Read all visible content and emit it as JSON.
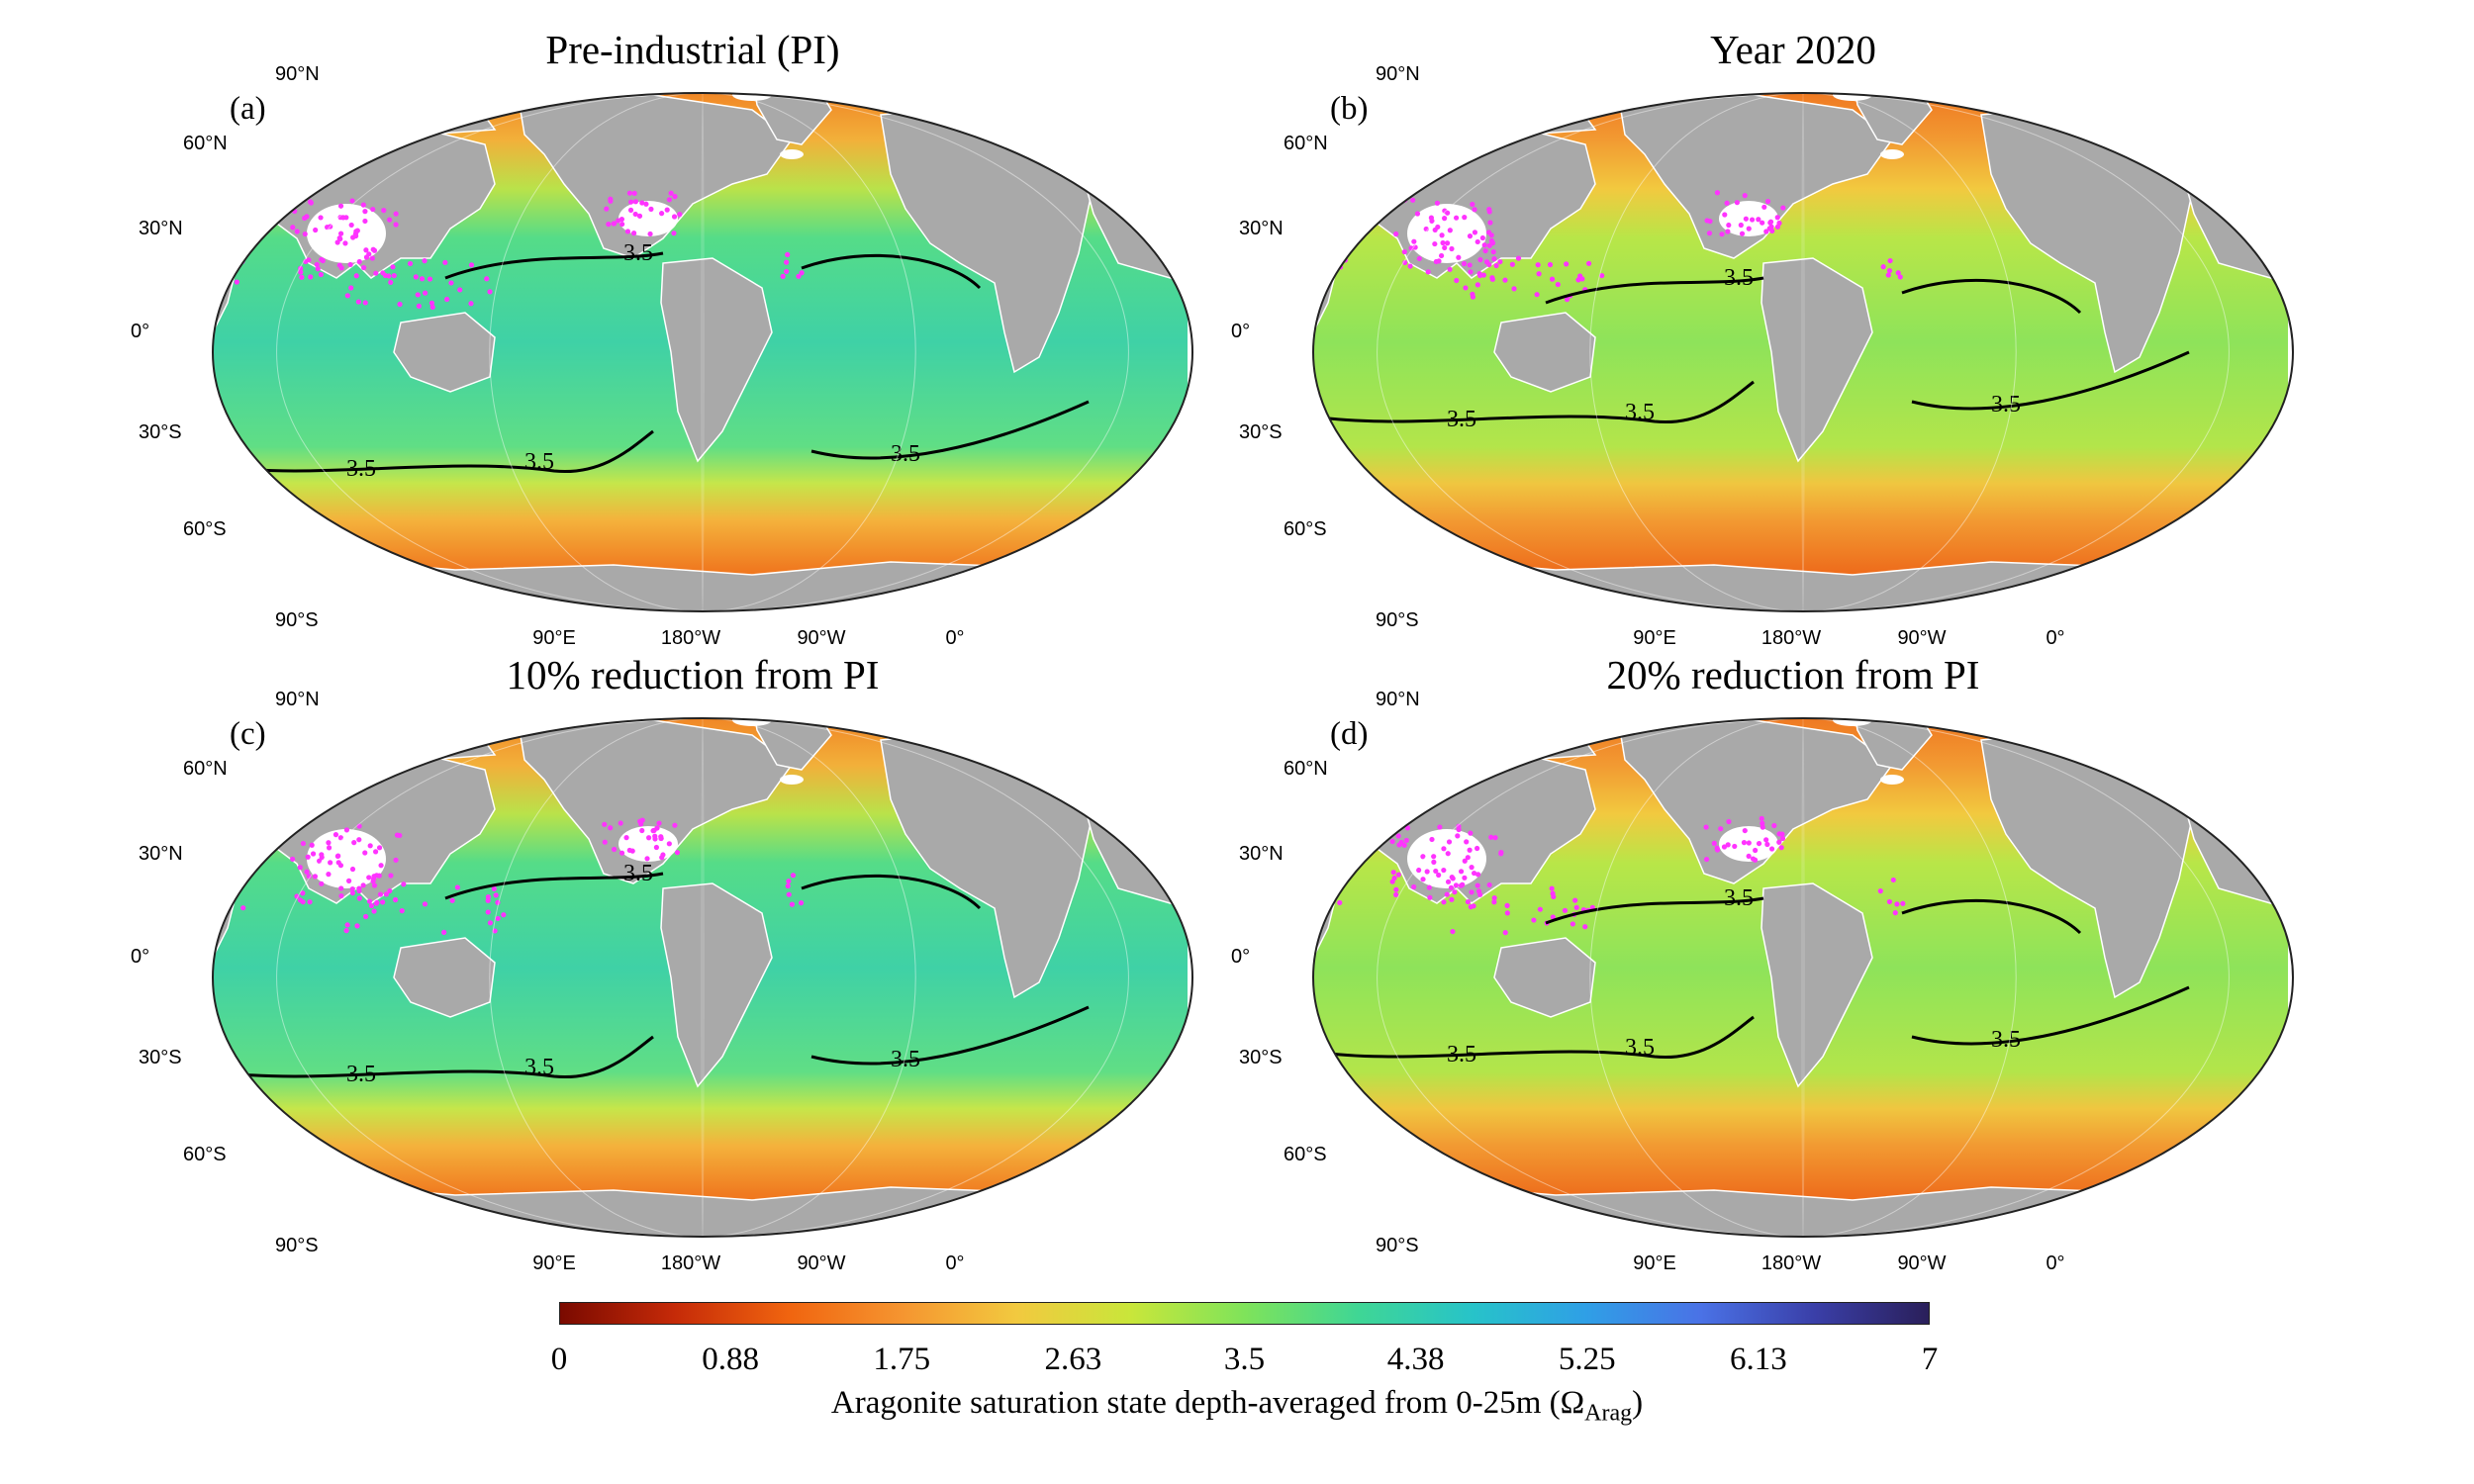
{
  "panels": [
    {
      "id": "a",
      "label": "(a)",
      "title": "Pre-industrial (PI)",
      "lat_labels": [
        "90°N",
        "60°N",
        "30°N",
        "0°",
        "30°S",
        "60°S",
        "90°S"
      ],
      "lon_labels": [
        "90°E",
        "180°W",
        "90°W",
        "0°"
      ],
      "contour_label": "3.5"
    },
    {
      "id": "b",
      "label": "(b)",
      "title": "Year 2020",
      "lat_labels": [
        "90°N",
        "60°N",
        "30°N",
        "0°",
        "30°S",
        "60°S",
        "90°S"
      ],
      "lon_labels": [
        "90°E",
        "180°W",
        "90°W",
        "0°"
      ],
      "contour_label": "3.5"
    },
    {
      "id": "c",
      "label": "(c)",
      "title": "10% reduction from PI",
      "lat_labels": [
        "90°N",
        "60°N",
        "30°N",
        "0°",
        "30°S",
        "60°S",
        "90°S"
      ],
      "lon_labels": [
        "90°E",
        "180°W",
        "90°W",
        "0°"
      ],
      "contour_label": "3.5"
    },
    {
      "id": "d",
      "label": "(d)",
      "title": "20% reduction from PI",
      "lat_labels": [
        "90°N",
        "60°N",
        "30°N",
        "0°",
        "30°S",
        "60°S",
        "90°S"
      ],
      "lon_labels": [
        "90°E",
        "180°W",
        "90°W",
        "0°"
      ],
      "contour_label": "3.5"
    }
  ],
  "colorbar": {
    "ticks": [
      "0",
      "0.88",
      "1.75",
      "2.63",
      "3.5",
      "4.38",
      "5.25",
      "6.13",
      "7"
    ],
    "min": 0,
    "max": 7,
    "label_main": "Aragonite saturation state depth-averaged from 0-25m (Ω",
    "label_sub": "Arag",
    "label_end": ")",
    "colors": [
      "#7a0a00",
      "#c52a08",
      "#f0640f",
      "#f59530",
      "#f2c93f",
      "#c9e63a",
      "#7fe35a",
      "#3fd695",
      "#27c3c9",
      "#2f9fe6",
      "#4a72e6",
      "#3a3fa8",
      "#2a1f5a"
    ]
  },
  "colors": {
    "land": "#a9a9a9",
    "ice": "#ffffff",
    "coral_reef": "#ff33ff",
    "contour": "#000000"
  }
}
